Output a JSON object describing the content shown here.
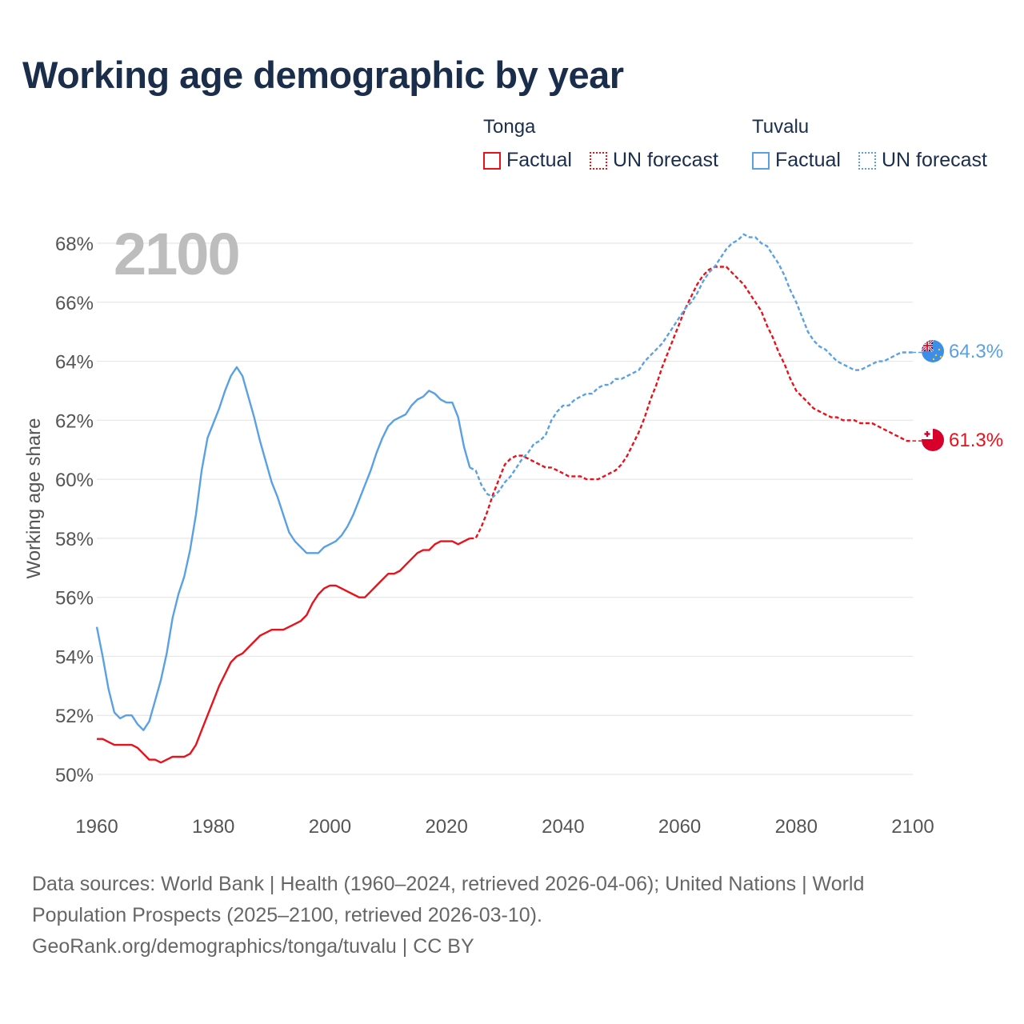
{
  "title": "Working age demographic by year",
  "legend": {
    "groups": [
      {
        "name": "Tonga",
        "color": "#e8121c",
        "factual": "Factual",
        "forecast": "UN forecast"
      },
      {
        "name": "Tuvalu",
        "color": "#5aa1e3",
        "factual": "Factual",
        "forecast": "UN forecast"
      }
    ]
  },
  "year_watermark": "2100",
  "footer": {
    "line1": "Data sources: World Bank | Health (1960–2024, retrieved 2026-04-06); United Nations | World",
    "line2": "Population Prospects (2025–2100, retrieved 2026-03-10).",
    "line3": "GeoRank.org/demographics/tonga/tuvalu | CC BY"
  },
  "chart_data": {
    "type": "line",
    "title": "Working age demographic by year",
    "xlabel": "",
    "ylabel": "Working age share",
    "xlim": [
      1960,
      2100
    ],
    "ylim": [
      50,
      68
    ],
    "x_ticks": [
      1960,
      1980,
      2000,
      2020,
      2040,
      2060,
      2080,
      2100
    ],
    "y_ticks": [
      50,
      52,
      54,
      56,
      58,
      60,
      62,
      64,
      66,
      68
    ],
    "y_tick_suffix": "%",
    "factual_until": 2024,
    "series": [
      {
        "name": "Tonga",
        "color": "#e8121c",
        "end_label": "61.3%",
        "points": [
          [
            1960,
            51.2
          ],
          [
            1961,
            51.2
          ],
          [
            1962,
            51.1
          ],
          [
            1963,
            51.0
          ],
          [
            1964,
            51.0
          ],
          [
            1965,
            51.0
          ],
          [
            1966,
            51.0
          ],
          [
            1967,
            50.9
          ],
          [
            1968,
            50.7
          ],
          [
            1969,
            50.5
          ],
          [
            1970,
            50.5
          ],
          [
            1971,
            50.4
          ],
          [
            1972,
            50.5
          ],
          [
            1973,
            50.6
          ],
          [
            1974,
            50.6
          ],
          [
            1975,
            50.6
          ],
          [
            1976,
            50.7
          ],
          [
            1977,
            51.0
          ],
          [
            1978,
            51.5
          ],
          [
            1979,
            52.0
          ],
          [
            1980,
            52.5
          ],
          [
            1981,
            53.0
          ],
          [
            1982,
            53.4
          ],
          [
            1983,
            53.8
          ],
          [
            1984,
            54.0
          ],
          [
            1985,
            54.1
          ],
          [
            1986,
            54.3
          ],
          [
            1987,
            54.5
          ],
          [
            1988,
            54.7
          ],
          [
            1989,
            54.8
          ],
          [
            1990,
            54.9
          ],
          [
            1991,
            54.9
          ],
          [
            1992,
            54.9
          ],
          [
            1993,
            55.0
          ],
          [
            1994,
            55.1
          ],
          [
            1995,
            55.2
          ],
          [
            1996,
            55.4
          ],
          [
            1997,
            55.8
          ],
          [
            1998,
            56.1
          ],
          [
            1999,
            56.3
          ],
          [
            2000,
            56.4
          ],
          [
            2001,
            56.4
          ],
          [
            2002,
            56.3
          ],
          [
            2003,
            56.2
          ],
          [
            2004,
            56.1
          ],
          [
            2005,
            56.0
          ],
          [
            2006,
            56.0
          ],
          [
            2007,
            56.2
          ],
          [
            2008,
            56.4
          ],
          [
            2009,
            56.6
          ],
          [
            2010,
            56.8
          ],
          [
            2011,
            56.8
          ],
          [
            2012,
            56.9
          ],
          [
            2013,
            57.1
          ],
          [
            2014,
            57.3
          ],
          [
            2015,
            57.5
          ],
          [
            2016,
            57.6
          ],
          [
            2017,
            57.6
          ],
          [
            2018,
            57.8
          ],
          [
            2019,
            57.9
          ],
          [
            2020,
            57.9
          ],
          [
            2021,
            57.9
          ],
          [
            2022,
            57.8
          ],
          [
            2023,
            57.9
          ],
          [
            2024,
            58.0
          ],
          [
            2025,
            58.0
          ],
          [
            2026,
            58.4
          ],
          [
            2027,
            58.9
          ],
          [
            2028,
            59.5
          ],
          [
            2029,
            60.0
          ],
          [
            2030,
            60.5
          ],
          [
            2031,
            60.7
          ],
          [
            2032,
            60.8
          ],
          [
            2033,
            60.8
          ],
          [
            2034,
            60.7
          ],
          [
            2035,
            60.6
          ],
          [
            2036,
            60.5
          ],
          [
            2037,
            60.4
          ],
          [
            2038,
            60.4
          ],
          [
            2039,
            60.3
          ],
          [
            2040,
            60.2
          ],
          [
            2041,
            60.1
          ],
          [
            2042,
            60.1
          ],
          [
            2043,
            60.1
          ],
          [
            2044,
            60.0
          ],
          [
            2045,
            60.0
          ],
          [
            2046,
            60.0
          ],
          [
            2047,
            60.1
          ],
          [
            2048,
            60.2
          ],
          [
            2049,
            60.3
          ],
          [
            2050,
            60.5
          ],
          [
            2051,
            60.8
          ],
          [
            2052,
            61.2
          ],
          [
            2053,
            61.6
          ],
          [
            2054,
            62.1
          ],
          [
            2055,
            62.7
          ],
          [
            2056,
            63.2
          ],
          [
            2057,
            63.8
          ],
          [
            2058,
            64.3
          ],
          [
            2059,
            64.8
          ],
          [
            2060,
            65.3
          ],
          [
            2061,
            65.8
          ],
          [
            2062,
            66.2
          ],
          [
            2063,
            66.6
          ],
          [
            2064,
            66.9
          ],
          [
            2065,
            67.1
          ],
          [
            2066,
            67.2
          ],
          [
            2067,
            67.2
          ],
          [
            2068,
            67.2
          ],
          [
            2069,
            67.0
          ],
          [
            2070,
            66.8
          ],
          [
            2071,
            66.6
          ],
          [
            2072,
            66.3
          ],
          [
            2073,
            66.0
          ],
          [
            2074,
            65.7
          ],
          [
            2075,
            65.2
          ],
          [
            2076,
            64.8
          ],
          [
            2077,
            64.3
          ],
          [
            2078,
            63.9
          ],
          [
            2079,
            63.4
          ],
          [
            2080,
            63.0
          ],
          [
            2081,
            62.8
          ],
          [
            2082,
            62.6
          ],
          [
            2083,
            62.4
          ],
          [
            2084,
            62.3
          ],
          [
            2085,
            62.2
          ],
          [
            2086,
            62.1
          ],
          [
            2087,
            62.1
          ],
          [
            2088,
            62.0
          ],
          [
            2089,
            62.0
          ],
          [
            2090,
            62.0
          ],
          [
            2091,
            61.9
          ],
          [
            2092,
            61.9
          ],
          [
            2093,
            61.9
          ],
          [
            2094,
            61.8
          ],
          [
            2095,
            61.7
          ],
          [
            2096,
            61.6
          ],
          [
            2097,
            61.5
          ],
          [
            2098,
            61.4
          ],
          [
            2099,
            61.3
          ],
          [
            2100,
            61.3
          ]
        ]
      },
      {
        "name": "Tuvalu",
        "color": "#5aa1e3",
        "end_label": "64.3%",
        "points": [
          [
            1960,
            55.0
          ],
          [
            1961,
            54.0
          ],
          [
            1962,
            52.9
          ],
          [
            1963,
            52.1
          ],
          [
            1964,
            51.9
          ],
          [
            1965,
            52.0
          ],
          [
            1966,
            52.0
          ],
          [
            1967,
            51.7
          ],
          [
            1968,
            51.5
          ],
          [
            1969,
            51.8
          ],
          [
            1970,
            52.5
          ],
          [
            1971,
            53.2
          ],
          [
            1972,
            54.1
          ],
          [
            1973,
            55.3
          ],
          [
            1974,
            56.1
          ],
          [
            1975,
            56.7
          ],
          [
            1976,
            57.6
          ],
          [
            1977,
            58.8
          ],
          [
            1978,
            60.3
          ],
          [
            1979,
            61.4
          ],
          [
            1980,
            61.9
          ],
          [
            1981,
            62.4
          ],
          [
            1982,
            63.0
          ],
          [
            1983,
            63.5
          ],
          [
            1984,
            63.8
          ],
          [
            1985,
            63.5
          ],
          [
            1986,
            62.8
          ],
          [
            1987,
            62.1
          ],
          [
            1988,
            61.3
          ],
          [
            1989,
            60.6
          ],
          [
            1990,
            59.9
          ],
          [
            1991,
            59.4
          ],
          [
            1992,
            58.8
          ],
          [
            1993,
            58.2
          ],
          [
            1994,
            57.9
          ],
          [
            1995,
            57.7
          ],
          [
            1996,
            57.5
          ],
          [
            1997,
            57.5
          ],
          [
            1998,
            57.5
          ],
          [
            1999,
            57.7
          ],
          [
            2000,
            57.8
          ],
          [
            2001,
            57.9
          ],
          [
            2002,
            58.1
          ],
          [
            2003,
            58.4
          ],
          [
            2004,
            58.8
          ],
          [
            2005,
            59.3
          ],
          [
            2006,
            59.8
          ],
          [
            2007,
            60.3
          ],
          [
            2008,
            60.9
          ],
          [
            2009,
            61.4
          ],
          [
            2010,
            61.8
          ],
          [
            2011,
            62.0
          ],
          [
            2012,
            62.1
          ],
          [
            2013,
            62.2
          ],
          [
            2014,
            62.5
          ],
          [
            2015,
            62.7
          ],
          [
            2016,
            62.8
          ],
          [
            2017,
            63.0
          ],
          [
            2018,
            62.9
          ],
          [
            2019,
            62.7
          ],
          [
            2020,
            62.6
          ],
          [
            2021,
            62.6
          ],
          [
            2022,
            62.1
          ],
          [
            2023,
            61.1
          ],
          [
            2024,
            60.4
          ],
          [
            2025,
            60.3
          ],
          [
            2026,
            59.8
          ],
          [
            2027,
            59.5
          ],
          [
            2028,
            59.4
          ],
          [
            2029,
            59.6
          ],
          [
            2030,
            59.9
          ],
          [
            2031,
            60.1
          ],
          [
            2032,
            60.4
          ],
          [
            2033,
            60.7
          ],
          [
            2034,
            60.9
          ],
          [
            2035,
            61.2
          ],
          [
            2036,
            61.3
          ],
          [
            2037,
            61.5
          ],
          [
            2038,
            62.0
          ],
          [
            2039,
            62.3
          ],
          [
            2040,
            62.5
          ],
          [
            2041,
            62.5
          ],
          [
            2042,
            62.7
          ],
          [
            2043,
            62.8
          ],
          [
            2044,
            62.9
          ],
          [
            2045,
            62.9
          ],
          [
            2046,
            63.1
          ],
          [
            2047,
            63.2
          ],
          [
            2048,
            63.2
          ],
          [
            2049,
            63.4
          ],
          [
            2050,
            63.4
          ],
          [
            2051,
            63.5
          ],
          [
            2052,
            63.6
          ],
          [
            2053,
            63.7
          ],
          [
            2054,
            64.0
          ],
          [
            2055,
            64.2
          ],
          [
            2056,
            64.4
          ],
          [
            2057,
            64.6
          ],
          [
            2058,
            64.9
          ],
          [
            2059,
            65.2
          ],
          [
            2060,
            65.5
          ],
          [
            2061,
            65.8
          ],
          [
            2062,
            66.0
          ],
          [
            2063,
            66.3
          ],
          [
            2064,
            66.7
          ],
          [
            2065,
            67.0
          ],
          [
            2066,
            67.2
          ],
          [
            2067,
            67.5
          ],
          [
            2068,
            67.8
          ],
          [
            2069,
            68.0
          ],
          [
            2070,
            68.1
          ],
          [
            2071,
            68.3
          ],
          [
            2072,
            68.2
          ],
          [
            2073,
            68.2
          ],
          [
            2074,
            68.0
          ],
          [
            2075,
            67.9
          ],
          [
            2076,
            67.6
          ],
          [
            2077,
            67.3
          ],
          [
            2078,
            66.9
          ],
          [
            2079,
            66.4
          ],
          [
            2080,
            66.0
          ],
          [
            2081,
            65.5
          ],
          [
            2082,
            65.0
          ],
          [
            2083,
            64.7
          ],
          [
            2084,
            64.5
          ],
          [
            2085,
            64.4
          ],
          [
            2086,
            64.2
          ],
          [
            2087,
            64.0
          ],
          [
            2088,
            63.9
          ],
          [
            2089,
            63.8
          ],
          [
            2090,
            63.7
          ],
          [
            2091,
            63.7
          ],
          [
            2092,
            63.8
          ],
          [
            2093,
            63.9
          ],
          [
            2094,
            64.0
          ],
          [
            2095,
            64.0
          ],
          [
            2096,
            64.1
          ],
          [
            2097,
            64.2
          ],
          [
            2098,
            64.3
          ],
          [
            2099,
            64.3
          ],
          [
            2100,
            64.3
          ]
        ]
      }
    ]
  }
}
